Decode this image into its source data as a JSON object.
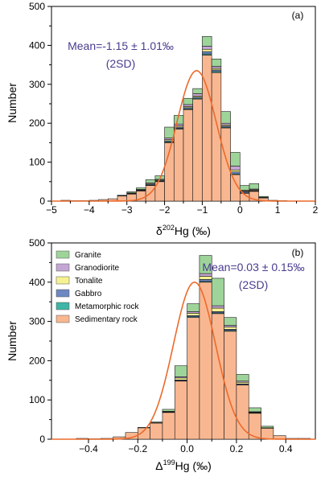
{
  "chart_data": [
    {
      "type": "bar",
      "panel_label": "(a)",
      "xlabel": {
        "prefix": "δ",
        "sup": "202",
        "suffix": "Hg (‰)"
      },
      "ylabel": "Number",
      "xlim": [
        -5,
        2
      ],
      "ylim": [
        0,
        500
      ],
      "xticks": [
        -5,
        -4,
        -3,
        -2,
        -1,
        0,
        1,
        2
      ],
      "xtick_labels": [
        "−5",
        "−4",
        "−3",
        "−2",
        "−1",
        "0",
        "1",
        "2"
      ],
      "yticks": [
        0,
        100,
        200,
        300,
        400,
        500
      ],
      "annotation": [
        "Mean=-1.15 ± 1.01‰",
        "(2SD)"
      ],
      "bin_width": 0.25,
      "stack_order": [
        "Sedimentary rock",
        "Metamorphic rock",
        "Gabbro",
        "Tonalite",
        "Granodiorite",
        "Granite"
      ],
      "bins": [
        {
          "start": -4.75,
          "stack": [
            2,
            0,
            0,
            0,
            0,
            0
          ]
        },
        {
          "start": -4.5,
          "stack": [
            1,
            0,
            0,
            0,
            0,
            0
          ]
        },
        {
          "start": -4.25,
          "stack": [
            1,
            0,
            0,
            0,
            0,
            0
          ]
        },
        {
          "start": -4.0,
          "stack": [
            2,
            0,
            0,
            0,
            0,
            0
          ]
        },
        {
          "start": -3.75,
          "stack": [
            4,
            0,
            0,
            0,
            0,
            0
          ]
        },
        {
          "start": -3.5,
          "stack": [
            6,
            0,
            0,
            0,
            0,
            0
          ]
        },
        {
          "start": -3.25,
          "stack": [
            13,
            0,
            0,
            1,
            0,
            1
          ]
        },
        {
          "start": -3.0,
          "stack": [
            18,
            0,
            1,
            1,
            1,
            3
          ]
        },
        {
          "start": -2.75,
          "stack": [
            26,
            1,
            1,
            1,
            1,
            4
          ]
        },
        {
          "start": -2.5,
          "stack": [
            40,
            1,
            2,
            2,
            2,
            8
          ]
        },
        {
          "start": -2.25,
          "stack": [
            50,
            1,
            2,
            2,
            1,
            9
          ]
        },
        {
          "start": -2.0,
          "stack": [
            150,
            2,
            3,
            3,
            4,
            28
          ]
        },
        {
          "start": -1.75,
          "stack": [
            185,
            2,
            3,
            3,
            5,
            22
          ]
        },
        {
          "start": -1.5,
          "stack": [
            235,
            2,
            3,
            3,
            5,
            16
          ]
        },
        {
          "start": -1.25,
          "stack": [
            262,
            2,
            3,
            3,
            6,
            13
          ]
        },
        {
          "start": -1.0,
          "stack": [
            375,
            3,
            6,
            6,
            8,
            25
          ]
        },
        {
          "start": -0.75,
          "stack": [
            330,
            3,
            4,
            4,
            5,
            19
          ]
        },
        {
          "start": -0.5,
          "stack": [
            188,
            2,
            3,
            3,
            4,
            30
          ]
        },
        {
          "start": -0.25,
          "stack": [
            68,
            2,
            5,
            5,
            10,
            35
          ]
        },
        {
          "start": 0.0,
          "stack": [
            20,
            1,
            3,
            2,
            2,
            12
          ]
        },
        {
          "start": 0.25,
          "stack": [
            25,
            1,
            1,
            2,
            2,
            14
          ]
        },
        {
          "start": 0.5,
          "stack": [
            8,
            0,
            1,
            1,
            0,
            2
          ]
        },
        {
          "start": 0.75,
          "stack": [
            2,
            0,
            0,
            0,
            0,
            0
          ]
        },
        {
          "start": 1.0,
          "stack": [
            1,
            0,
            0,
            0,
            0,
            0
          ]
        }
      ],
      "fit": {
        "mean": -1.15,
        "sigma": 0.52,
        "peak": 335
      }
    },
    {
      "type": "bar",
      "panel_label": "(b)",
      "xlabel": {
        "prefix": "Δ",
        "sup": "199",
        "suffix": "Hg (‰)"
      },
      "ylabel": "Number",
      "xlim": [
        -0.55,
        0.52
      ],
      "ylim": [
        0,
        500
      ],
      "xticks": [
        -0.4,
        -0.2,
        0.0,
        0.2,
        0.4
      ],
      "xtick_labels": [
        "−0.4",
        "−0.2",
        "0.0",
        "0.2",
        "0.4"
      ],
      "yticks": [
        0,
        100,
        200,
        300,
        400,
        500
      ],
      "annotation": [
        "Mean=0.03 ± 0.15‰",
        "(2SD)"
      ],
      "legend_position": "top-left",
      "legend": [
        "Granite",
        "Granodiorite",
        "Tonalite",
        "Gabbro",
        "Metamorphic rock",
        "Sedimentary rock"
      ],
      "bin_width": 0.05,
      "stack_order": [
        "Sedimentary rock",
        "Metamorphic rock",
        "Gabbro",
        "Tonalite",
        "Granodiorite",
        "Granite"
      ],
      "bins": [
        {
          "start": -0.45,
          "stack": [
            2,
            0,
            0,
            0,
            0,
            0
          ]
        },
        {
          "start": -0.4,
          "stack": [
            1,
            0,
            0,
            0,
            0,
            0
          ]
        },
        {
          "start": -0.35,
          "stack": [
            2,
            0,
            0,
            0,
            0,
            0
          ]
        },
        {
          "start": -0.3,
          "stack": [
            6,
            0,
            0,
            0,
            0,
            0
          ]
        },
        {
          "start": -0.25,
          "stack": [
            17,
            0,
            0,
            0,
            0,
            0
          ]
        },
        {
          "start": -0.2,
          "stack": [
            29,
            0,
            0,
            0,
            0,
            1
          ]
        },
        {
          "start": -0.15,
          "stack": [
            41,
            0,
            0,
            1,
            0,
            2
          ]
        },
        {
          "start": -0.1,
          "stack": [
            68,
            0,
            1,
            1,
            1,
            5
          ]
        },
        {
          "start": -0.05,
          "stack": [
            148,
            1,
            2,
            5,
            3,
            28
          ]
        },
        {
          "start": 0.0,
          "stack": [
            310,
            2,
            3,
            6,
            4,
            20
          ]
        },
        {
          "start": 0.05,
          "stack": [
            400,
            2,
            5,
            8,
            7,
            46
          ]
        },
        {
          "start": 0.1,
          "stack": [
            320,
            2,
            3,
            9,
            6,
            70
          ]
        },
        {
          "start": 0.15,
          "stack": [
            275,
            2,
            3,
            6,
            4,
            20
          ]
        },
        {
          "start": 0.2,
          "stack": [
            138,
            1,
            2,
            4,
            3,
            17
          ]
        },
        {
          "start": 0.25,
          "stack": [
            66,
            1,
            1,
            1,
            1,
            10
          ]
        },
        {
          "start": 0.3,
          "stack": [
            28,
            0,
            0,
            1,
            0,
            4
          ]
        },
        {
          "start": 0.35,
          "stack": [
            9,
            0,
            0,
            0,
            0,
            0
          ]
        },
        {
          "start": 0.4,
          "stack": [
            2,
            0,
            0,
            0,
            0,
            0
          ]
        },
        {
          "start": 0.45,
          "stack": [
            2,
            0,
            0,
            0,
            0,
            0
          ]
        }
      ],
      "fit": {
        "mean": 0.03,
        "sigma": 0.085,
        "peak": 400
      }
    }
  ],
  "series_colors": {
    "Granite": "#9ed49a",
    "Granodiorite": "#c4a6d4",
    "Tonalite": "#f6f291",
    "Gabbro": "#6d88c2",
    "Metamorphic rock": "#3fb5a5",
    "Sedimentary rock": "#f9b791"
  },
  "fit_color": "#ec6a2a",
  "annotation_color": "#4a3b8f"
}
